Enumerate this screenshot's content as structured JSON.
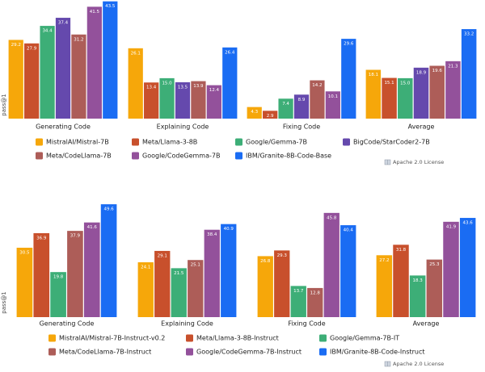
{
  "chart_data": [
    {
      "type": "bar",
      "y_label": "pass@1",
      "note": "Apache 2.0 License",
      "categories": [
        "Generating Code",
        "Explaining Code",
        "Fixing Code",
        "Average"
      ],
      "ylim": [
        0,
        44
      ],
      "series": [
        {
          "name": "MistralAI/Mistral-7B",
          "color": "#f6a70a",
          "values": [
            29.2,
            26.1,
            4.3,
            18.1
          ]
        },
        {
          "name": "Meta/Llama-3-8B",
          "color": "#c8502c",
          "values": [
            27.9,
            13.4,
            2.9,
            15.1
          ]
        },
        {
          "name": "Google/Gemma-7B",
          "color": "#3dae77",
          "values": [
            34.4,
            15.0,
            7.4,
            15.0
          ],
          "value_labels": [
            "34.4",
            "15.0",
            "7.4",
            "15.0"
          ]
        },
        {
          "name": "BigCode/StarCoder2-7B",
          "color": "#6549ad",
          "values": [
            37.4,
            13.5,
            8.9,
            18.9
          ]
        },
        {
          "name": "Meta/CodeLlama-7B",
          "color": "#ad5d58",
          "values": [
            31.2,
            13.9,
            14.2,
            19.6
          ]
        },
        {
          "name": "Google/CodeGemma-7B",
          "color": "#93519b",
          "values": [
            41.5,
            12.4,
            10.1,
            21.3
          ]
        },
        {
          "name": "IBM/Granite-8B-Code-Base",
          "color": "#1a6cf3",
          "values": [
            43.5,
            26.4,
            29.6,
            33.2
          ]
        }
      ]
    },
    {
      "type": "bar",
      "y_label": "pass@1",
      "note": "Apache 2.0 License",
      "categories": [
        "Generating Code",
        "Explaining Code",
        "Fixing Code",
        "Average"
      ],
      "ylim": [
        0,
        50
      ],
      "series": [
        {
          "name": "MistralAI/Mistral-7B-Instruct-v0.2",
          "color": "#f6a70a",
          "values": [
            30.5,
            24.1,
            26.8,
            27.2
          ]
        },
        {
          "name": "Meta/Llama-3-8B-Instruct",
          "color": "#c8502c",
          "values": [
            36.9,
            29.1,
            29.3,
            31.8
          ]
        },
        {
          "name": "Google/Gemma-7B-IT",
          "color": "#3dae77",
          "values": [
            19.8,
            21.5,
            13.7,
            18.3
          ]
        },
        {
          "name": "Meta/CodeLlama-7B-Instruct",
          "color": "#ad5d58",
          "values": [
            37.9,
            25.1,
            12.8,
            25.3
          ]
        },
        {
          "name": "Google/CodeGemma-7B-Instruct",
          "color": "#93519b",
          "values": [
            41.6,
            38.4,
            45.8,
            41.9
          ]
        },
        {
          "name": "IBM/Granite-8B-Code-Instruct",
          "color": "#1a6cf3",
          "values": [
            49.6,
            40.9,
            40.4,
            43.6
          ]
        }
      ]
    }
  ]
}
